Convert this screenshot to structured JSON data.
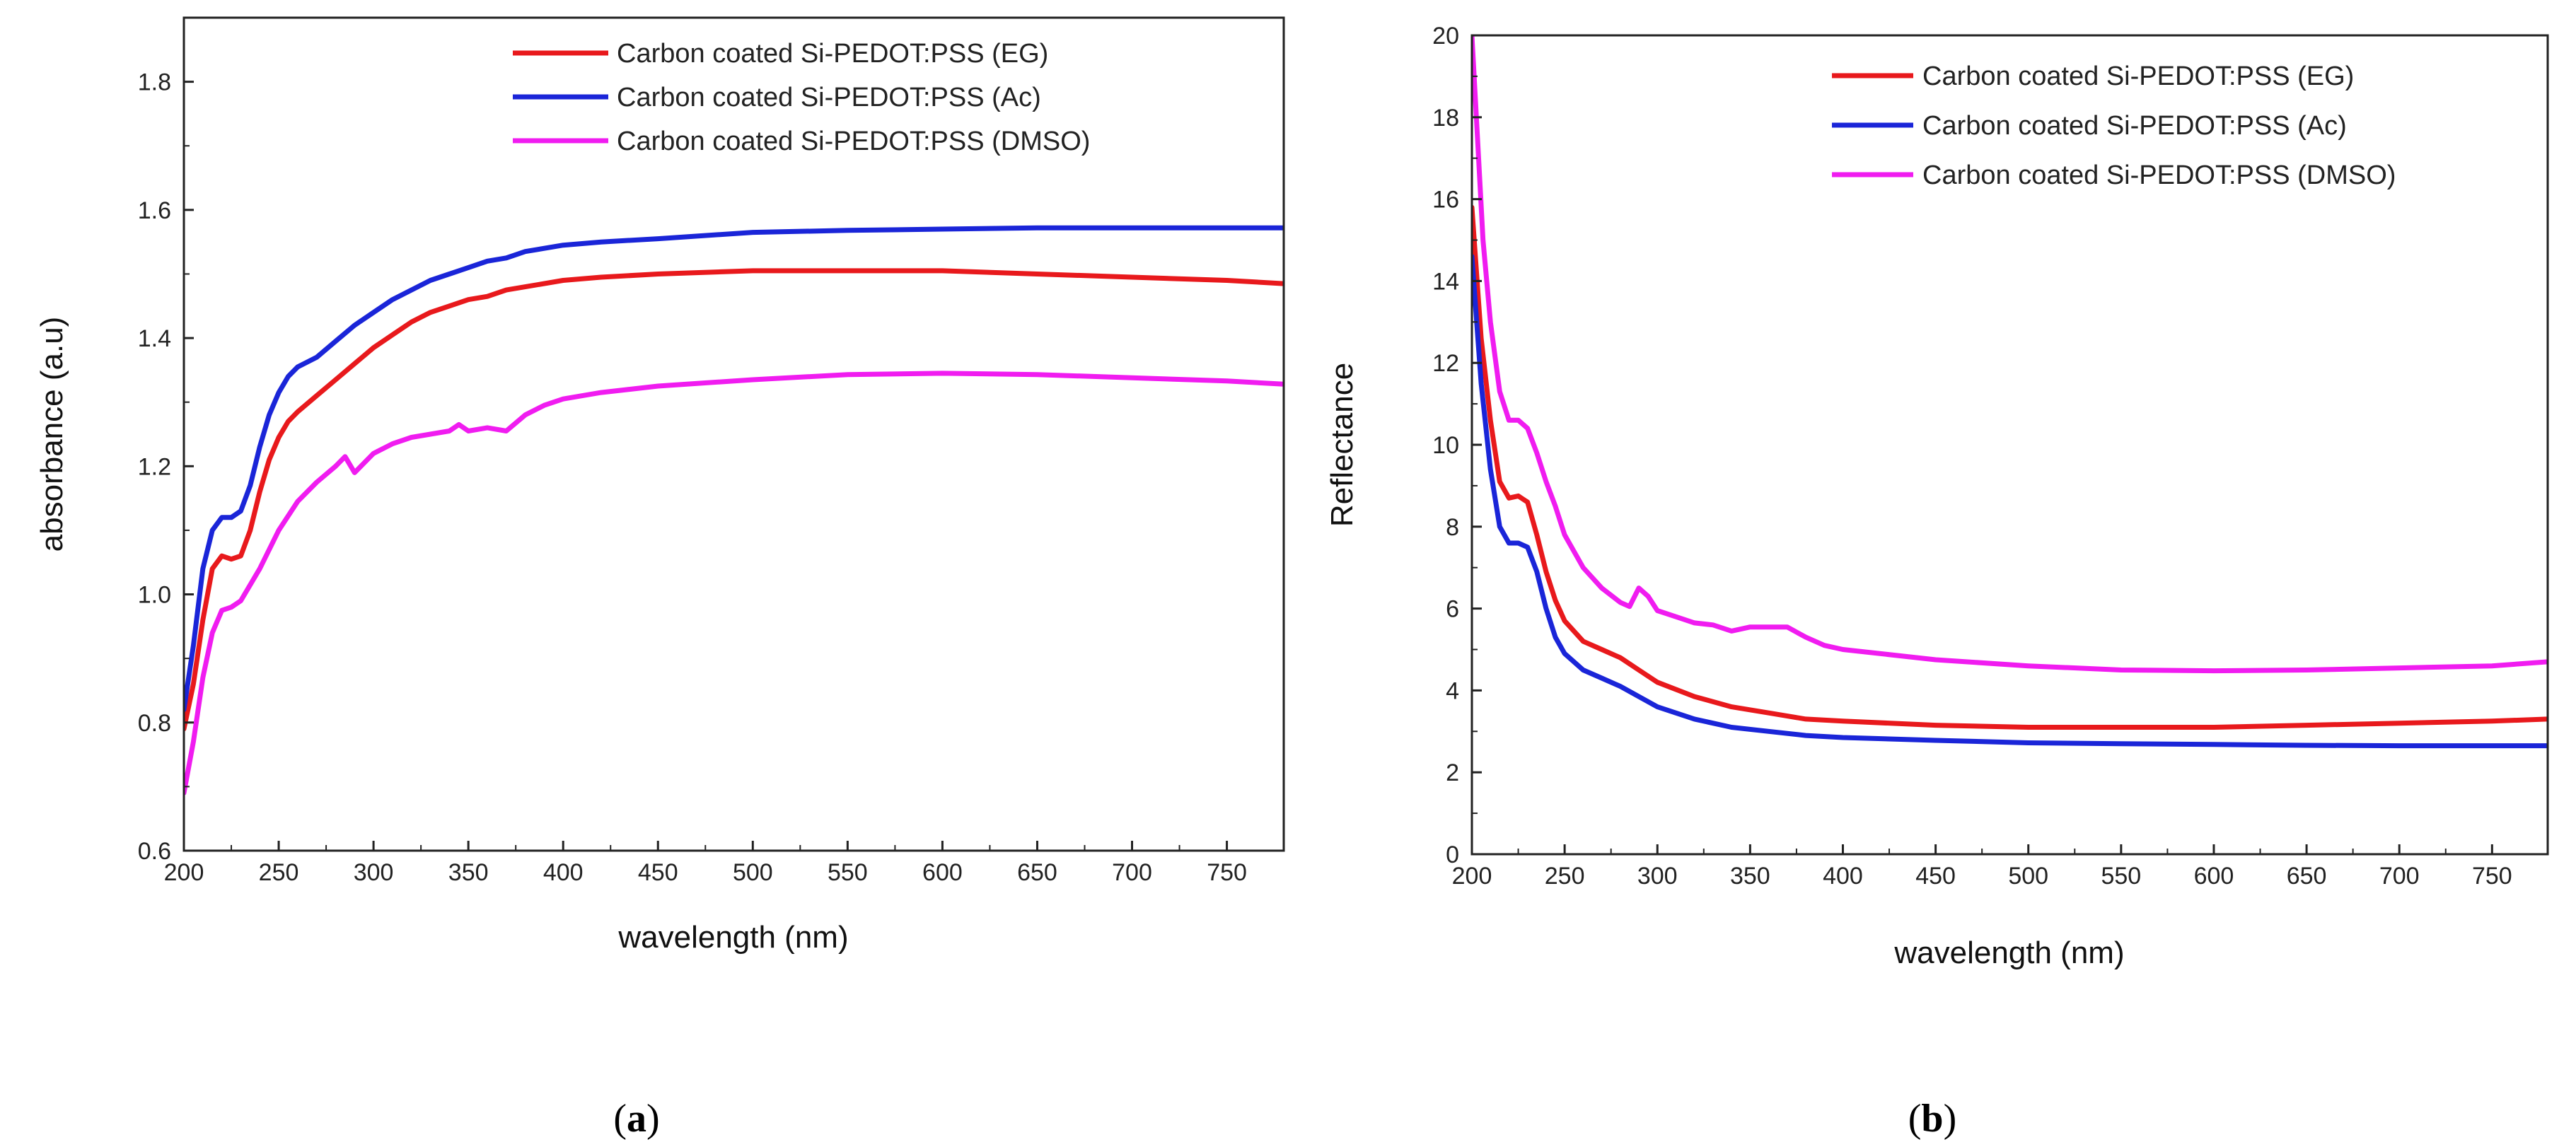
{
  "chart_data": [
    {
      "type": "line",
      "panel_label": "(a)",
      "panel_letter": "a",
      "title": "",
      "xlabel": "wavelength (nm)",
      "ylabel": "absorbance (a.u)",
      "xlim": [
        200,
        780
      ],
      "ylim": [
        0.6,
        1.9
      ],
      "xticks": [
        200,
        250,
        300,
        350,
        400,
        450,
        500,
        550,
        600,
        650,
        700,
        750
      ],
      "yticks": [
        0.6,
        0.8,
        1.0,
        1.2,
        1.4,
        1.6,
        1.8
      ],
      "ytick_labels": [
        "0.6",
        "0.8",
        "1.0",
        "1.2",
        "1.4",
        "1.6",
        "1.8"
      ],
      "grid": false,
      "legend_position": "top-right",
      "series": [
        {
          "name": "Carbon coated Si-PEDOT:PSS (EG)",
          "color": "#e8191c",
          "x": [
            200,
            205,
            210,
            215,
            220,
            225,
            230,
            235,
            240,
            245,
            250,
            255,
            260,
            270,
            280,
            290,
            300,
            310,
            320,
            330,
            340,
            350,
            360,
            370,
            380,
            400,
            420,
            450,
            500,
            550,
            600,
            650,
            700,
            750,
            780
          ],
          "y": [
            0.79,
            0.86,
            0.96,
            1.04,
            1.06,
            1.055,
            1.06,
            1.1,
            1.16,
            1.21,
            1.245,
            1.27,
            1.285,
            1.31,
            1.335,
            1.36,
            1.385,
            1.405,
            1.425,
            1.44,
            1.45,
            1.46,
            1.465,
            1.475,
            1.48,
            1.49,
            1.495,
            1.5,
            1.505,
            1.505,
            1.505,
            1.5,
            1.495,
            1.49,
            1.485
          ]
        },
        {
          "name": "Carbon coated Si-PEDOT:PSS (Ac)",
          "color": "#1a25d8",
          "x": [
            200,
            205,
            210,
            215,
            220,
            225,
            230,
            235,
            240,
            245,
            250,
            255,
            260,
            270,
            280,
            290,
            300,
            310,
            320,
            330,
            340,
            350,
            360,
            370,
            380,
            400,
            420,
            450,
            500,
            550,
            600,
            650,
            700,
            750,
            780
          ],
          "y": [
            0.82,
            0.92,
            1.04,
            1.1,
            1.12,
            1.12,
            1.13,
            1.17,
            1.23,
            1.28,
            1.315,
            1.34,
            1.355,
            1.37,
            1.395,
            1.42,
            1.44,
            1.46,
            1.475,
            1.49,
            1.5,
            1.51,
            1.52,
            1.525,
            1.535,
            1.545,
            1.55,
            1.555,
            1.565,
            1.568,
            1.57,
            1.572,
            1.572,
            1.572,
            1.572
          ]
        },
        {
          "name": "Carbon coated Si-PEDOT:PSS (DMSO)",
          "color": "#f01cf0",
          "x": [
            200,
            205,
            210,
            215,
            220,
            225,
            230,
            240,
            250,
            260,
            270,
            280,
            285,
            290,
            295,
            300,
            310,
            320,
            330,
            340,
            345,
            350,
            360,
            370,
            380,
            390,
            400,
            420,
            450,
            500,
            550,
            600,
            650,
            700,
            750,
            780
          ],
          "y": [
            0.69,
            0.77,
            0.87,
            0.94,
            0.975,
            0.98,
            0.99,
            1.04,
            1.1,
            1.145,
            1.175,
            1.2,
            1.215,
            1.19,
            1.205,
            1.22,
            1.235,
            1.245,
            1.25,
            1.255,
            1.265,
            1.255,
            1.26,
            1.255,
            1.28,
            1.295,
            1.305,
            1.315,
            1.325,
            1.335,
            1.343,
            1.345,
            1.343,
            1.338,
            1.333,
            1.328
          ]
        }
      ]
    },
    {
      "type": "line",
      "panel_label": "(b)",
      "panel_letter": "b",
      "title": "",
      "xlabel": "wavelength (nm)",
      "ylabel": "Reflectance",
      "xlim": [
        200,
        780
      ],
      "ylim": [
        0,
        20
      ],
      "xticks": [
        200,
        250,
        300,
        350,
        400,
        450,
        500,
        550,
        600,
        650,
        700,
        750
      ],
      "yticks": [
        0,
        2,
        4,
        6,
        8,
        10,
        12,
        14,
        16,
        18,
        20
      ],
      "ytick_labels": [
        "0",
        "2",
        "4",
        "6",
        "8",
        "10",
        "12",
        "14",
        "16",
        "18",
        "20"
      ],
      "grid": false,
      "legend_position": "top-right",
      "series": [
        {
          "name": "Carbon coated Si-PEDOT:PSS (EG)",
          "color": "#e8191c",
          "x": [
            200,
            205,
            210,
            215,
            220,
            225,
            230,
            235,
            240,
            245,
            250,
            260,
            270,
            280,
            290,
            300,
            320,
            340,
            360,
            380,
            400,
            450,
            500,
            550,
            600,
            650,
            700,
            750,
            780
          ],
          "y": [
            15.8,
            12.6,
            10.6,
            9.1,
            8.7,
            8.75,
            8.6,
            7.8,
            6.9,
            6.2,
            5.7,
            5.2,
            5.0,
            4.8,
            4.5,
            4.2,
            3.85,
            3.6,
            3.45,
            3.3,
            3.25,
            3.15,
            3.1,
            3.1,
            3.1,
            3.15,
            3.2,
            3.25,
            3.3
          ]
        },
        {
          "name": "Carbon coated Si-PEDOT:PSS (Ac)",
          "color": "#1a25d8",
          "x": [
            200,
            205,
            210,
            215,
            220,
            225,
            230,
            235,
            240,
            245,
            250,
            260,
            270,
            280,
            290,
            300,
            320,
            340,
            360,
            380,
            400,
            450,
            500,
            550,
            600,
            650,
            700,
            750,
            780
          ],
          "y": [
            14.6,
            11.5,
            9.4,
            8.0,
            7.6,
            7.6,
            7.5,
            6.9,
            6.0,
            5.3,
            4.9,
            4.5,
            4.3,
            4.1,
            3.85,
            3.6,
            3.3,
            3.1,
            3.0,
            2.9,
            2.85,
            2.78,
            2.72,
            2.7,
            2.68,
            2.66,
            2.65,
            2.65,
            2.65
          ]
        },
        {
          "name": "Carbon coated Si-PEDOT:PSS (DMSO)",
          "color": "#f01cf0",
          "x": [
            200,
            203,
            206,
            210,
            215,
            220,
            225,
            230,
            235,
            240,
            245,
            250,
            260,
            270,
            280,
            285,
            290,
            295,
            300,
            310,
            320,
            330,
            340,
            350,
            360,
            370,
            380,
            390,
            400,
            450,
            500,
            550,
            600,
            650,
            700,
            750,
            780
          ],
          "y": [
            20.0,
            17.5,
            15.0,
            13.0,
            11.3,
            10.6,
            10.6,
            10.4,
            9.8,
            9.1,
            8.5,
            7.8,
            7.0,
            6.5,
            6.15,
            6.05,
            6.5,
            6.3,
            5.95,
            5.8,
            5.65,
            5.6,
            5.45,
            5.55,
            5.55,
            5.55,
            5.3,
            5.1,
            5.0,
            4.75,
            4.6,
            4.5,
            4.48,
            4.5,
            4.55,
            4.6,
            4.7
          ]
        }
      ]
    }
  ]
}
